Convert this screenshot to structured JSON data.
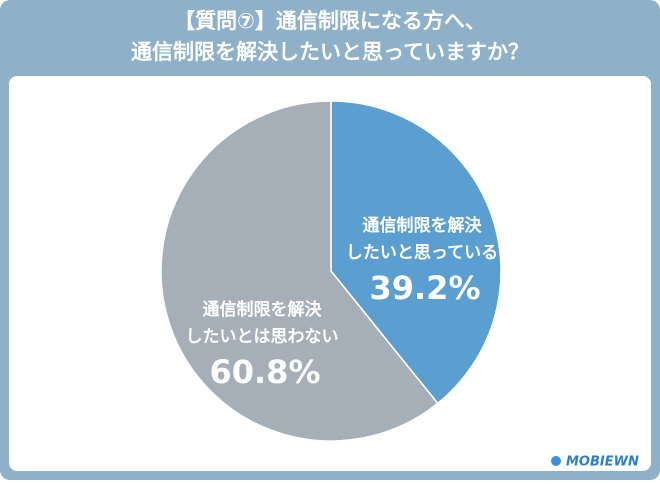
{
  "chart_data": {
    "type": "pie",
    "title": [
      "【質問⑦】通信制限になる方へ、",
      "通信制限を解決したいと思っていますか？"
    ],
    "categories": [
      [
        "通信制限を解決",
        "したいと思っている"
      ],
      [
        "通信制限を解決",
        "したいとは思わない"
      ]
    ],
    "values": [
      39.2,
      60.8
    ],
    "value_labels": [
      "39.2%",
      "60.8%"
    ],
    "colors": [
      "#5a9fd0",
      "#a6afb7"
    ],
    "logo": "MOBIEWN"
  }
}
